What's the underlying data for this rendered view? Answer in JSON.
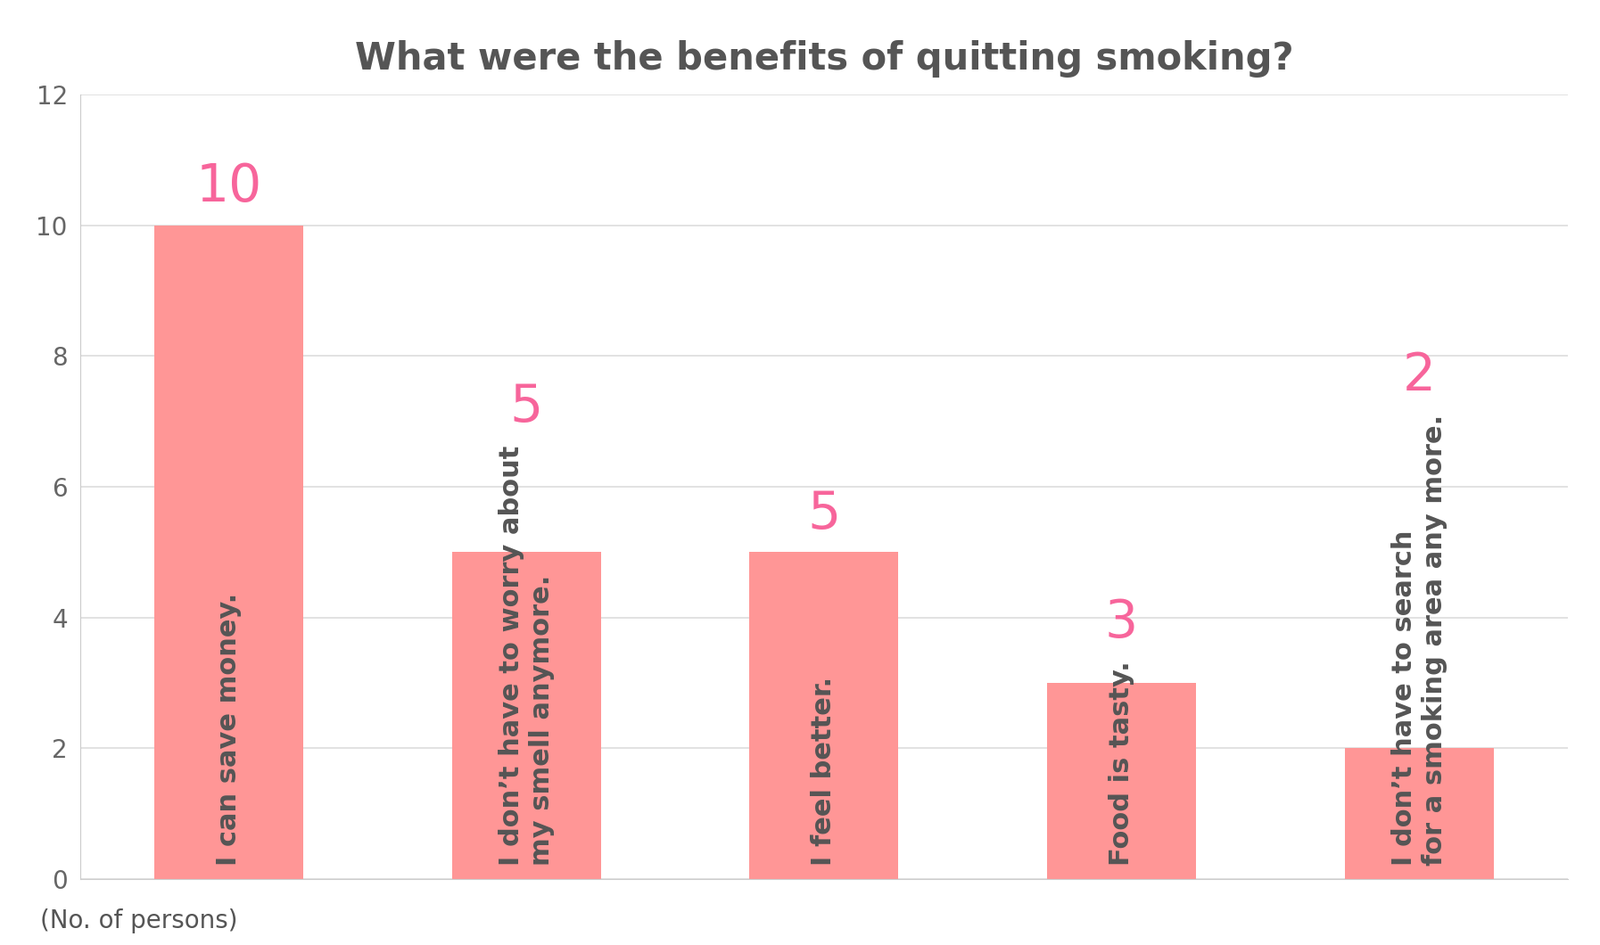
{
  "chart_data": {
    "type": "bar",
    "title": "What were the benefits of quitting smoking?",
    "y_label": "(No. of persons)",
    "categories": [
      "I can save money.",
      "I don’t have to worry about\nmy smell anymore.",
      "I feel better.",
      "Food is tasty.",
      "I don’t have to search\nfor a smoking area any more."
    ],
    "values": [
      10,
      5,
      5,
      3,
      2
    ],
    "color": "#ff9696",
    "ylim": [
      0,
      12
    ],
    "yticks": [
      0,
      2,
      4,
      6,
      8,
      10,
      12
    ],
    "grid": true,
    "data_labels": true
  }
}
